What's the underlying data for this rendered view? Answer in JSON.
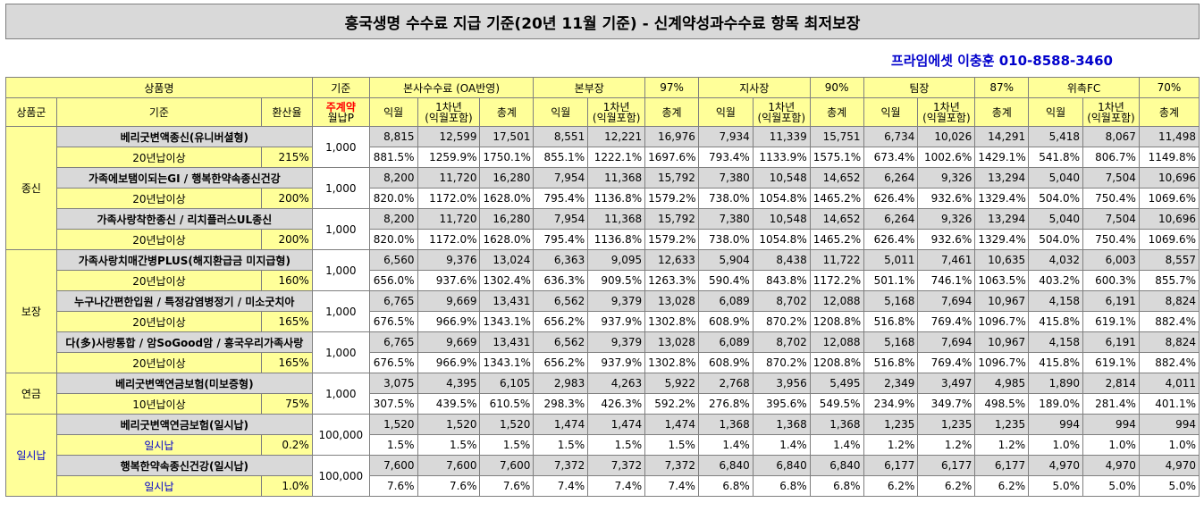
{
  "title": "흥국생명 수수료 지급 기준(20년 11월 기준) - 신계약성과수수료 항목 최저보장",
  "contact": "프라임에셋 이충훈 010-8588-3460",
  "header1": {
    "product": "상품명",
    "base": "기준",
    "hq": "본사수수료 (OA반영)",
    "g1": "본부장",
    "g1p": "97%",
    "g2": "지사장",
    "g2p": "90%",
    "g3": "팀장",
    "g3p": "87%",
    "g4": "위촉FC",
    "g4p": "70%"
  },
  "header2": {
    "group": "상품군",
    "criteria": "기준",
    "rate": "환산율",
    "premium_a": "주계약",
    "premium_b": "월납P",
    "m": "익월",
    "y1a": "1차년",
    "y1b": "(익월포함)",
    "tot": "총계"
  },
  "groups": [
    {
      "name": "종신",
      "rows": [
        {
          "product": "베리굿변액종신(유니버셜형)",
          "base": "1,000",
          "criteria": "20년납이상",
          "rate": "215%",
          "vals": [
            "8,815",
            "12,599",
            "17,501",
            "8,551",
            "12,221",
            "16,976",
            "7,934",
            "11,339",
            "15,751",
            "6,734",
            "10,026",
            "14,291",
            "5,418",
            "8,067",
            "11,498"
          ],
          "pcts": [
            "881.5%",
            "1259.9%",
            "1750.1%",
            "855.1%",
            "1222.1%",
            "1697.6%",
            "793.4%",
            "1133.9%",
            "1575.1%",
            "673.4%",
            "1002.6%",
            "1429.1%",
            "541.8%",
            "806.7%",
            "1149.8%"
          ]
        },
        {
          "product": "가족에보탬이되는GI / 행복한약속종신건강",
          "base": "1,000",
          "criteria": "20년납이상",
          "rate": "200%",
          "vals": [
            "8,200",
            "11,720",
            "16,280",
            "7,954",
            "11,368",
            "15,792",
            "7,380",
            "10,548",
            "14,652",
            "6,264",
            "9,326",
            "13,294",
            "5,040",
            "7,504",
            "10,696"
          ],
          "pcts": [
            "820.0%",
            "1172.0%",
            "1628.0%",
            "795.4%",
            "1136.8%",
            "1579.2%",
            "738.0%",
            "1054.8%",
            "1465.2%",
            "626.4%",
            "932.6%",
            "1329.4%",
            "504.0%",
            "750.4%",
            "1069.6%"
          ]
        },
        {
          "product": "가족사랑착한종신 / 리치플러스UL종신",
          "base": "1,000",
          "criteria": "20년납이상",
          "rate": "200%",
          "vals": [
            "8,200",
            "11,720",
            "16,280",
            "7,954",
            "11,368",
            "15,792",
            "7,380",
            "10,548",
            "14,652",
            "6,264",
            "9,326",
            "13,294",
            "5,040",
            "7,504",
            "10,696"
          ],
          "pcts": [
            "820.0%",
            "1172.0%",
            "1628.0%",
            "795.4%",
            "1136.8%",
            "1579.2%",
            "738.0%",
            "1054.8%",
            "1465.2%",
            "626.4%",
            "932.6%",
            "1329.4%",
            "504.0%",
            "750.4%",
            "1069.6%"
          ]
        }
      ]
    },
    {
      "name": "보장",
      "rows": [
        {
          "product": "가족사랑치매간병PLUS(해지환급금 미지급형)",
          "base": "1,000",
          "criteria": "20년납이상",
          "rate": "160%",
          "vals": [
            "6,560",
            "9,376",
            "13,024",
            "6,363",
            "9,095",
            "12,633",
            "5,904",
            "8,438",
            "11,722",
            "5,011",
            "7,461",
            "10,635",
            "4,032",
            "6,003",
            "8,557"
          ],
          "pcts": [
            "656.0%",
            "937.6%",
            "1302.4%",
            "636.3%",
            "909.5%",
            "1263.3%",
            "590.4%",
            "843.8%",
            "1172.2%",
            "501.1%",
            "746.1%",
            "1063.5%",
            "403.2%",
            "600.3%",
            "855.7%"
          ]
        },
        {
          "product": "누구나간편한입원 / 특정감염병정기 / 미소굿치아",
          "base": "1,000",
          "criteria": "20년납이상",
          "rate": "165%",
          "vals": [
            "6,765",
            "9,669",
            "13,431",
            "6,562",
            "9,379",
            "13,028",
            "6,089",
            "8,702",
            "12,088",
            "5,168",
            "7,694",
            "10,967",
            "4,158",
            "6,191",
            "8,824"
          ],
          "pcts": [
            "676.5%",
            "966.9%",
            "1343.1%",
            "656.2%",
            "937.9%",
            "1302.8%",
            "608.9%",
            "870.2%",
            "1208.8%",
            "516.8%",
            "769.4%",
            "1096.7%",
            "415.8%",
            "619.1%",
            "882.4%"
          ]
        },
        {
          "product": "다(多)사랑통합 / 암SoGood암 / 흥국우리가족사랑",
          "base": "1,000",
          "criteria": "20년납이상",
          "rate": "165%",
          "vals": [
            "6,765",
            "9,669",
            "13,431",
            "6,562",
            "9,379",
            "13,028",
            "6,089",
            "8,702",
            "12,088",
            "5,168",
            "7,694",
            "10,967",
            "4,158",
            "6,191",
            "8,824"
          ],
          "pcts": [
            "676.5%",
            "966.9%",
            "1343.1%",
            "656.2%",
            "937.9%",
            "1302.8%",
            "608.9%",
            "870.2%",
            "1208.8%",
            "516.8%",
            "769.4%",
            "1096.7%",
            "415.8%",
            "619.1%",
            "882.4%"
          ]
        }
      ]
    },
    {
      "name": "연금",
      "rows": [
        {
          "product": "베리굿변액연금보험(미보증형)",
          "base": "1,000",
          "criteria": "10년납이상",
          "rate": "75%",
          "vals": [
            "3,075",
            "4,395",
            "6,105",
            "2,983",
            "4,263",
            "5,922",
            "2,768",
            "3,956",
            "5,495",
            "2,349",
            "3,497",
            "4,985",
            "1,890",
            "2,814",
            "4,011"
          ],
          "pcts": [
            "307.5%",
            "439.5%",
            "610.5%",
            "298.3%",
            "426.3%",
            "592.2%",
            "276.8%",
            "395.6%",
            "549.5%",
            "234.9%",
            "349.7%",
            "498.5%",
            "189.0%",
            "281.4%",
            "401.1%"
          ]
        }
      ]
    },
    {
      "name": "일시납",
      "blue": true,
      "rows": [
        {
          "product": "베리굿변액연금보험(일시납)",
          "base": "100,000",
          "criteria": "일시납",
          "rate": "0.2%",
          "vals": [
            "1,520",
            "1,520",
            "1,520",
            "1,474",
            "1,474",
            "1,474",
            "1,368",
            "1,368",
            "1,368",
            "1,235",
            "1,235",
            "1,235",
            "994",
            "994",
            "994"
          ],
          "pcts": [
            "1.5%",
            "1.5%",
            "1.5%",
            "1.5%",
            "1.5%",
            "1.5%",
            "1.4%",
            "1.4%",
            "1.4%",
            "1.2%",
            "1.2%",
            "1.2%",
            "1.0%",
            "1.0%",
            "1.0%"
          ]
        },
        {
          "product": "행복한약속종신건강(일시납)",
          "base": "100,000",
          "criteria": "일시납",
          "rate": "1.0%",
          "vals": [
            "7,600",
            "7,600",
            "7,600",
            "7,372",
            "7,372",
            "7,372",
            "6,840",
            "6,840",
            "6,840",
            "6,177",
            "6,177",
            "6,177",
            "4,970",
            "4,970",
            "4,970"
          ],
          "pcts": [
            "7.6%",
            "7.6%",
            "7.6%",
            "7.4%",
            "7.4%",
            "7.4%",
            "6.8%",
            "6.8%",
            "6.8%",
            "6.2%",
            "6.2%",
            "6.2%",
            "5.0%",
            "5.0%",
            "5.0%"
          ]
        }
      ]
    }
  ]
}
